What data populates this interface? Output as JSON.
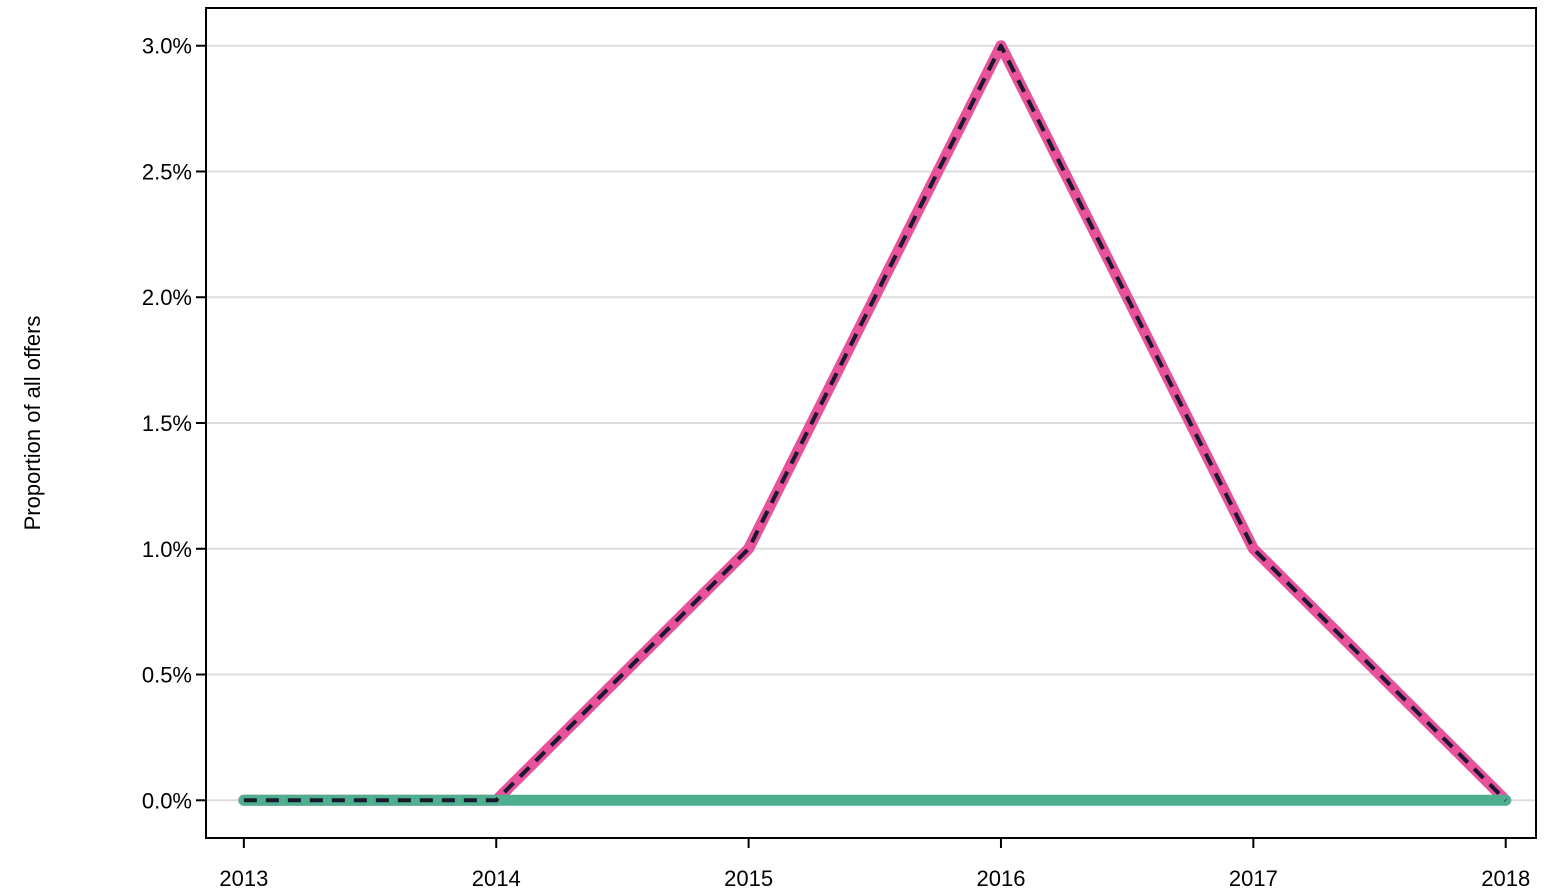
{
  "chart_data": {
    "type": "line",
    "title": "",
    "xlabel": "",
    "ylabel": "Proportion of all offers",
    "x": [
      2013,
      2014,
      2015,
      2016,
      2017,
      2018
    ],
    "x_tick_labels": [
      "2013",
      "2014",
      "2015",
      "2016",
      "2017",
      "2018"
    ],
    "y_tick_values": [
      0,
      0.5,
      1.0,
      1.5,
      2.0,
      2.5,
      3.0
    ],
    "y_tick_labels": [
      "0.0%",
      "0.5%",
      "1.0%",
      "1.5%",
      "2.0%",
      "2.5%",
      "3.0%"
    ],
    "xlim": [
      2012.85,
      2018.12
    ],
    "ylim": [
      -0.15,
      3.15
    ],
    "grid": "horizontal",
    "series": [
      {
        "values": [
          0,
          0,
          1.0,
          3.0,
          1.0,
          0
        ],
        "color": "#e8529a",
        "style": "solid"
      },
      {
        "values": [
          0,
          0,
          0,
          0,
          0,
          0
        ],
        "color": "#4daf90",
        "style": "solid"
      },
      {
        "values": [
          0,
          0,
          1.0,
          3.0,
          1.0,
          0
        ],
        "color": "#1a1a2e",
        "style": "dashed"
      }
    ]
  }
}
